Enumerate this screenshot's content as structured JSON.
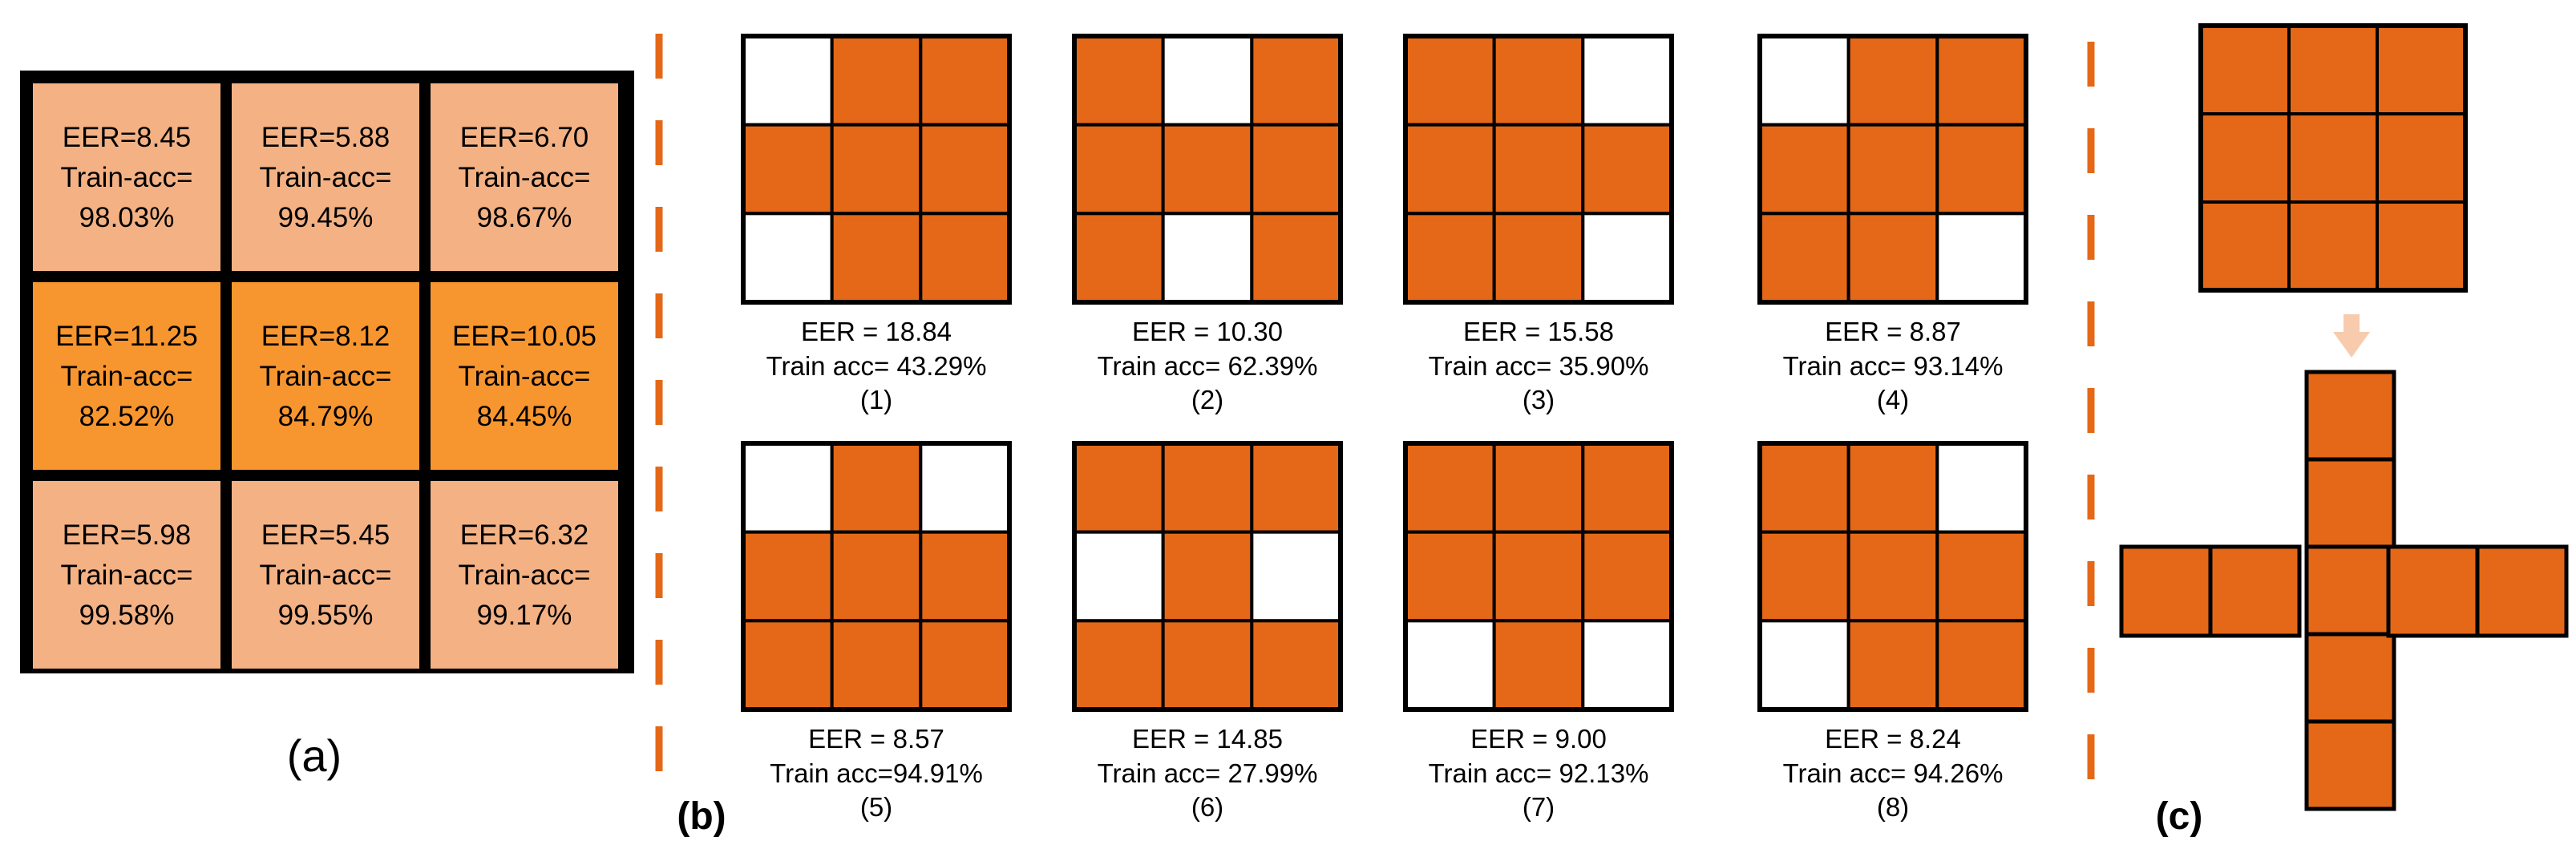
{
  "colors": {
    "light_cell": "#F3B184",
    "dark_cell": "#F7962F",
    "kernel_on": "#E46817",
    "kernel_off": "#FFFFFF",
    "border": "#000000",
    "divider": "#E46817",
    "arrow": "#F8CBAD"
  },
  "panel_a": {
    "label": "(a)",
    "grid": [
      {
        "line1": "EER=8.45",
        "line2": "Train-acc=",
        "line3": "98.03%",
        "shade": "light"
      },
      {
        "line1": "EER=5.88",
        "line2": "Train-acc=",
        "line3": "99.45%",
        "shade": "light"
      },
      {
        "line1": "EER=6.70",
        "line2": "Train-acc=",
        "line3": "98.67%",
        "shade": "light"
      },
      {
        "line1": "EER=11.25",
        "line2": "Train-acc=",
        "line3": "82.52%",
        "shade": "dark"
      },
      {
        "line1": "EER=8.12",
        "line2": "Train-acc=",
        "line3": "84.79%",
        "shade": "dark"
      },
      {
        "line1": "EER=10.05",
        "line2": "Train-acc=",
        "line3": "84.45%",
        "shade": "dark"
      },
      {
        "line1": "EER=5.98",
        "line2": "Train-acc=",
        "line3": "99.58%",
        "shade": "light"
      },
      {
        "line1": "EER=5.45",
        "line2": "Train-acc=",
        "line3": "99.55%",
        "shade": "light"
      },
      {
        "line1": "EER=6.32",
        "line2": "Train-acc=",
        "line3": "99.17%",
        "shade": "light"
      }
    ]
  },
  "panel_b": {
    "label": "(b)",
    "kernels": [
      {
        "pattern": [
          0,
          1,
          1,
          1,
          1,
          1,
          0,
          1,
          1
        ],
        "eer": "EER = 18.84",
        "acc": "Train acc= 43.29%",
        "num": "(1)"
      },
      {
        "pattern": [
          1,
          0,
          1,
          1,
          1,
          1,
          1,
          0,
          1
        ],
        "eer": "EER = 10.30",
        "acc": "Train acc= 62.39%",
        "num": "(2)"
      },
      {
        "pattern": [
          1,
          1,
          0,
          1,
          1,
          1,
          1,
          1,
          0
        ],
        "eer": "EER = 15.58",
        "acc": "Train acc= 35.90%",
        "num": "(3)"
      },
      {
        "pattern": [
          0,
          1,
          1,
          1,
          1,
          1,
          1,
          1,
          0
        ],
        "eer": "EER = 8.87",
        "acc": "Train acc= 93.14%",
        "num": "(4)"
      },
      {
        "pattern": [
          0,
          1,
          0,
          1,
          1,
          1,
          1,
          1,
          1
        ],
        "eer": "EER = 8.57",
        "acc": "Train acc=94.91%",
        "num": "(5)"
      },
      {
        "pattern": [
          1,
          1,
          1,
          0,
          1,
          0,
          1,
          1,
          1
        ],
        "eer": "EER = 14.85",
        "acc": "Train acc= 27.99%",
        "num": "(6)"
      },
      {
        "pattern": [
          1,
          1,
          1,
          1,
          1,
          1,
          0,
          1,
          0
        ],
        "eer": "EER = 9.00",
        "acc": "Train acc= 92.13%",
        "num": "(7)"
      },
      {
        "pattern": [
          1,
          1,
          0,
          1,
          1,
          1,
          0,
          1,
          1
        ],
        "eer": "EER = 8.24",
        "acc": "Train acc= 94.26%",
        "num": "(8)"
      }
    ]
  },
  "panel_c": {
    "label": "(c)"
  }
}
